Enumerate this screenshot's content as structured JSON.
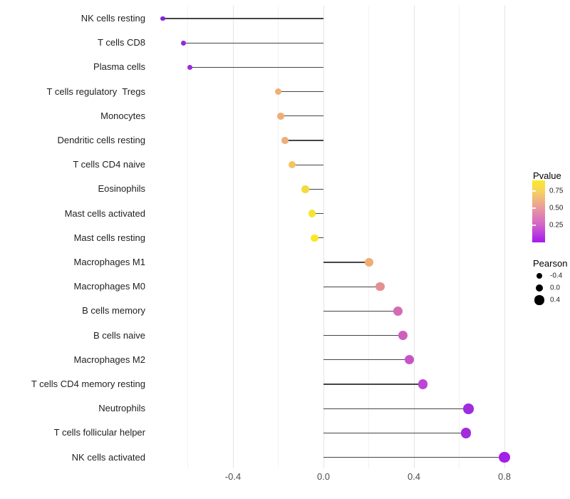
{
  "chart_data": {
    "type": "lollipop",
    "orientation": "horizontal",
    "title": "",
    "xlabel": "",
    "ylabel": "",
    "grid": "vertical-only",
    "xlim": [
      -0.78,
      0.88
    ],
    "categories": [
      "NK cells resting",
      "T cells CD8",
      "Plasma cells",
      "T cells regulatory  Tregs",
      "Monocytes",
      "Dendritic cells resting",
      "T cells CD4 naive",
      "Eosinophils",
      "Mast cells activated",
      "Mast cells resting",
      "Macrophages M1",
      "Macrophages M0",
      "B cells memory",
      "B cells naive",
      "Macrophages M2",
      "T cells CD4 memory resting",
      "Neutrophils",
      "T cells follicular helper",
      "NK cells activated"
    ],
    "series": [
      {
        "name": "Pearson",
        "values": [
          -0.71,
          -0.62,
          -0.59,
          -0.2,
          -0.19,
          -0.17,
          -0.14,
          -0.08,
          -0.05,
          -0.04,
          0.2,
          0.25,
          0.33,
          0.35,
          0.38,
          0.44,
          0.64,
          0.63,
          0.8
        ]
      }
    ],
    "point_colors": [
      "#8324D6",
      "#9727DF",
      "#A029D8",
      "#EFAF77",
      "#EFAE76",
      "#EEAD7B",
      "#F3C45F",
      "#F2DC3D",
      "#F6E52E",
      "#F9E821",
      "#F0AC72",
      "#E59090",
      "#D56CB3",
      "#CE5FBD",
      "#C654C8",
      "#BA45D6",
      "#A02BDF",
      "#A02BDF",
      "#A320E8"
    ],
    "stem_color": "#454545",
    "x_ticks": [
      {
        "label": "-0.4",
        "value": -0.4
      },
      {
        "label": "0.0",
        "value": 0.0
      },
      {
        "label": "0.4",
        "value": 0.4
      },
      {
        "label": "0.8",
        "value": 0.8
      }
    ],
    "x_minor_gridlines": [
      -0.6,
      -0.2,
      0.2,
      0.6
    ],
    "legend_pvalue": {
      "title": "Pvalue",
      "tick_labels": [
        {
          "label": "0.75",
          "value": 0.75
        },
        {
          "label": "0.50",
          "value": 0.5
        },
        {
          "label": "0.25",
          "value": 0.25
        }
      ],
      "gradient_stops": [
        {
          "pos": 0,
          "color": "#A318F0"
        },
        {
          "pos": 28,
          "color": "#D264C8"
        },
        {
          "pos": 55,
          "color": "#E9999E"
        },
        {
          "pos": 83,
          "color": "#F6D35E"
        },
        {
          "pos": 100,
          "color": "#FAE92C"
        }
      ]
    },
    "legend_pearson": {
      "title": "Pearson",
      "dot_color": "#000000",
      "items": [
        {
          "label": "-0.4",
          "value": -0.4
        },
        {
          "label": "0.0",
          "value": 0.0
        },
        {
          "label": "0.4",
          "value": 0.4
        }
      ]
    }
  }
}
